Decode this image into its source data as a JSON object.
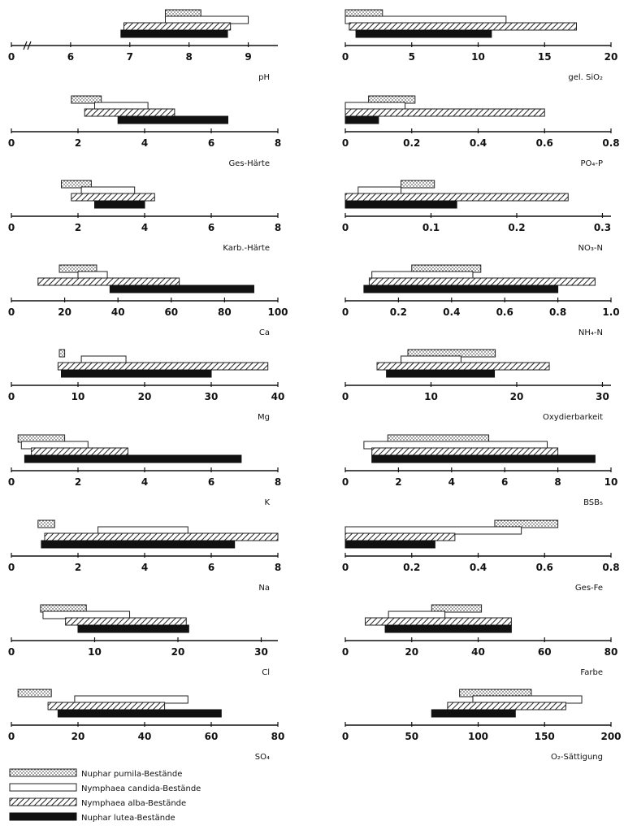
{
  "legend": [
    {
      "key": "pumila",
      "label": "Nuphar pumila-Bestände"
    },
    {
      "key": "candida",
      "label": "Nymphaea candida-Bestände"
    },
    {
      "key": "alba",
      "label": "Nymphaea alba-Bestände"
    },
    {
      "key": "lutea",
      "label": "Nuphar lutea-Bestände"
    }
  ],
  "chart_data": [
    {
      "type": "bar",
      "xlabel": "pH",
      "ticks": [
        "0",
        "6",
        "7",
        "8",
        "9"
      ],
      "xlim": [
        5,
        9.5
      ],
      "axis_break": true,
      "ranges": {
        "pumila": [
          7.6,
          8.2
        ],
        "candida": [
          7.6,
          9.0
        ],
        "alba": [
          6.9,
          8.7
        ],
        "lutea": [
          6.85,
          8.65
        ]
      }
    },
    {
      "type": "bar",
      "xlabel": "gel. SiO₂",
      "ticks": [
        "0",
        "5",
        "10",
        "15",
        "20"
      ],
      "xlim": [
        0,
        20
      ],
      "ranges": {
        "pumila": [
          0,
          2.8
        ],
        "candida": [
          0,
          12.1
        ],
        "alba": [
          0.3,
          17.4
        ],
        "lutea": [
          0.8,
          11.0
        ]
      }
    },
    {
      "type": "bar",
      "xlabel": "Ges-Härte",
      "ticks": [
        "0",
        "2",
        "4",
        "6",
        "8"
      ],
      "xlim": [
        0,
        8
      ],
      "ranges": {
        "pumila": [
          1.8,
          2.7
        ],
        "candida": [
          2.5,
          4.1
        ],
        "alba": [
          2.2,
          4.9
        ],
        "lutea": [
          3.2,
          6.5
        ]
      }
    },
    {
      "type": "bar",
      "xlabel": "PO₄-P",
      "ticks": [
        "0",
        "0.2",
        "0.4",
        "0.6",
        "0.8"
      ],
      "xlim": [
        0,
        0.8
      ],
      "ranges": {
        "pumila": [
          0.07,
          0.21
        ],
        "candida": [
          0,
          0.18
        ],
        "alba": [
          0,
          0.6
        ],
        "lutea": [
          0,
          0.1
        ]
      }
    },
    {
      "type": "bar",
      "xlabel": "Karb.-Härte",
      "ticks": [
        "0",
        "2",
        "4",
        "6",
        "8"
      ],
      "xlim": [
        0,
        8
      ],
      "ranges": {
        "pumila": [
          1.5,
          2.4
        ],
        "candida": [
          2.1,
          3.7
        ],
        "alba": [
          1.8,
          4.3
        ],
        "lutea": [
          2.5,
          4.0
        ]
      }
    },
    {
      "type": "bar",
      "xlabel": "NO₃-N",
      "ticks": [
        "0",
        "0.1",
        "0.2",
        "0.3"
      ],
      "xlim": [
        0,
        0.31
      ],
      "ranges": {
        "pumila": [
          0.065,
          0.104
        ],
        "candida": [
          0.015,
          0.065
        ],
        "alba": [
          0,
          0.26
        ],
        "lutea": [
          0,
          0.13
        ]
      }
    },
    {
      "type": "bar",
      "xlabel": "Ca",
      "ticks": [
        "0",
        "20",
        "40",
        "60",
        "80",
        "100"
      ],
      "xlim": [
        0,
        100
      ],
      "ranges": {
        "pumila": [
          18,
          32
        ],
        "candida": [
          25,
          36
        ],
        "alba": [
          10,
          63
        ],
        "lutea": [
          37,
          91
        ]
      }
    },
    {
      "type": "bar",
      "xlabel": "NH₄-N",
      "ticks": [
        "0",
        "0.2",
        "0.4",
        "0.6",
        "0.8",
        "1.0"
      ],
      "xlim": [
        0,
        1.0
      ],
      "ranges": {
        "pumila": [
          0.25,
          0.51
        ],
        "candida": [
          0.1,
          0.48
        ],
        "alba": [
          0.09,
          0.94
        ],
        "lutea": [
          0.07,
          0.8
        ]
      }
    },
    {
      "type": "bar",
      "xlabel": "Mg",
      "ticks": [
        "0",
        "10",
        "20",
        "30",
        "40"
      ],
      "xlim": [
        0,
        40
      ],
      "ranges": {
        "pumila": [
          7.2,
          8.0
        ],
        "candida": [
          10.5,
          17.2
        ],
        "alba": [
          7,
          38.5
        ],
        "lutea": [
          7.5,
          30.0
        ]
      }
    },
    {
      "type": "bar",
      "xlabel": "Oxydierbarkeit",
      "ticks": [
        "0",
        "10",
        "20",
        "30"
      ],
      "xlim": [
        0,
        31
      ],
      "ranges": {
        "pumila": [
          7.3,
          17.5
        ],
        "candida": [
          6.5,
          13.5
        ],
        "alba": [
          3.7,
          23.8
        ],
        "lutea": [
          4.8,
          17.4
        ]
      }
    },
    {
      "type": "bar",
      "xlabel": "K",
      "ticks": [
        "0",
        "2",
        "4",
        "6",
        "8"
      ],
      "xlim": [
        0,
        8
      ],
      "ranges": {
        "pumila": [
          0.2,
          1.6
        ],
        "candida": [
          0.3,
          2.3
        ],
        "alba": [
          0.6,
          3.5
        ],
        "lutea": [
          0.4,
          6.9
        ]
      }
    },
    {
      "type": "bar",
      "xlabel": "BSB₅",
      "ticks": [
        "0",
        "2",
        "4",
        "6",
        "8",
        "10"
      ],
      "xlim": [
        0,
        10
      ],
      "ranges": {
        "pumila": [
          1.6,
          5.4
        ],
        "candida": [
          0.7,
          7.6
        ],
        "alba": [
          1.0,
          8.0
        ],
        "lutea": [
          1.0,
          9.4
        ]
      }
    },
    {
      "type": "bar",
      "xlabel": "Na",
      "ticks": [
        "0",
        "2",
        "4",
        "6",
        "8"
      ],
      "xlim": [
        0,
        8
      ],
      "ranges": {
        "pumila": [
          0.8,
          1.3
        ],
        "candida": [
          2.6,
          5.3
        ],
        "alba": [
          1.0,
          8.0
        ],
        "lutea": [
          0.9,
          6.7
        ]
      }
    },
    {
      "type": "bar",
      "xlabel": "Ges-Fe",
      "ticks": [
        "0",
        "0.2",
        "0.4",
        "0.6",
        "0.8"
      ],
      "xlim": [
        0,
        0.8
      ],
      "ranges": {
        "pumila": [
          0.45,
          0.64
        ],
        "candida": [
          0,
          0.53
        ],
        "alba": [
          0,
          0.33
        ],
        "lutea": [
          0,
          0.27
        ]
      }
    },
    {
      "type": "bar",
      "xlabel": "Cl",
      "ticks": [
        "0",
        "10",
        "20",
        "30"
      ],
      "xlim": [
        0,
        32
      ],
      "ranges": {
        "pumila": [
          3.5,
          9.0
        ],
        "candida": [
          3.8,
          14.2
        ],
        "alba": [
          6.5,
          21.0
        ],
        "lutea": [
          8.0,
          21.3
        ]
      }
    },
    {
      "type": "bar",
      "xlabel": "Farbe",
      "ticks": [
        "0",
        "20",
        "40",
        "60",
        "80"
      ],
      "xlim": [
        0,
        80
      ],
      "ranges": {
        "pumila": [
          26,
          41
        ],
        "candida": [
          13,
          30
        ],
        "alba": [
          6,
          50
        ],
        "lutea": [
          12,
          50
        ]
      }
    },
    {
      "type": "bar",
      "xlabel": "SO₄",
      "ticks": [
        "0",
        "20",
        "40",
        "60",
        "80"
      ],
      "xlim": [
        0,
        80
      ],
      "ranges": {
        "pumila": [
          2,
          12
        ],
        "candida": [
          19,
          53
        ],
        "alba": [
          11,
          46
        ],
        "lutea": [
          14,
          63
        ]
      }
    },
    {
      "type": "bar",
      "xlabel": "O₂-Sättigung",
      "ticks": [
        "0",
        "50",
        "100",
        "150",
        "200"
      ],
      "xlim": [
        0,
        200
      ],
      "ranges": {
        "pumila": [
          86,
          140
        ],
        "candida": [
          96,
          178
        ],
        "alba": [
          77,
          166
        ],
        "lutea": [
          65,
          128
        ]
      }
    }
  ]
}
